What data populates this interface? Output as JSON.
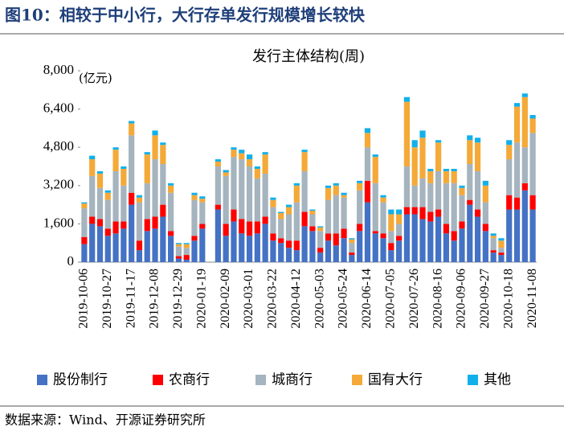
{
  "header": {
    "title": "图10：相较于中小行，大行存单发行规模增长较快"
  },
  "chart_data": {
    "type": "stacked_bar",
    "title": "发行主体结构(周)",
    "y_label": "(亿元)",
    "categories": [
      "2019-10-06",
      null,
      null,
      "2019-10-27",
      null,
      null,
      "2019-11-17",
      null,
      null,
      "2019-12-08",
      null,
      null,
      "2019-12-29",
      null,
      null,
      "2020-01-19",
      null,
      null,
      "2020-02-09",
      null,
      null,
      "2020-03-01",
      null,
      null,
      "2020-03-22",
      null,
      null,
      "2020-04-12",
      null,
      null,
      "2020-05-03",
      null,
      null,
      "2020-05-24",
      null,
      null,
      "2020-06-14",
      null,
      null,
      "2020-07-05",
      null,
      null,
      "2020-07-26",
      null,
      null,
      "2020-08-16",
      null,
      null,
      "2020-09-06",
      null,
      null,
      "2020-09-27",
      null,
      null,
      "2020-10-18",
      null,
      null,
      "2020-11-08"
    ],
    "series": [
      {
        "name": "股份制行",
        "color": "#4472c4",
        "values": [
          750,
          1600,
          1500,
          1100,
          1200,
          1400,
          2400,
          500,
          1300,
          1400,
          1900,
          1100,
          150,
          100,
          900,
          1400,
          0,
          2200,
          1100,
          1700,
          1200,
          1100,
          1200,
          1600,
          900,
          800,
          600,
          500,
          1500,
          1300,
          400,
          900,
          700,
          1000,
          300,
          1300,
          2500,
          1200,
          1000,
          500,
          900,
          2000,
          2000,
          1800,
          1700,
          1900,
          1200,
          900,
          1400,
          2400,
          1900,
          1300,
          400,
          300,
          2200,
          2200,
          3000,
          2200
        ]
      },
      {
        "name": "农商行",
        "color": "#ff0000",
        "values": [
          300,
          300,
          300,
          300,
          500,
          300,
          500,
          400,
          500,
          500,
          500,
          200,
          100,
          200,
          200,
          200,
          0,
          200,
          500,
          500,
          600,
          600,
          500,
          300,
          300,
          200,
          300,
          400,
          600,
          200,
          200,
          300,
          500,
          400,
          100,
          300,
          900,
          100,
          200,
          300,
          200,
          300,
          300,
          500,
          400,
          300,
          400,
          400,
          300,
          200,
          300,
          300,
          100,
          100,
          600,
          500,
          300,
          600
        ]
      },
      {
        "name": "城商行",
        "color": "#a5b4be",
        "values": [
          1200,
          1700,
          1300,
          1200,
          2100,
          1500,
          2400,
          1600,
          1500,
          2400,
          1700,
          1600,
          400,
          300,
          1500,
          900,
          0,
          1600,
          2000,
          2200,
          2500,
          2300,
          1800,
          1800,
          1100,
          800,
          1100,
          1600,
          1700,
          500,
          700,
          1400,
          1600,
          1300,
          400,
          1400,
          1400,
          2000,
          1300,
          500,
          500,
          1700,
          900,
          1200,
          1200,
          1600,
          1700,
          2000,
          1100,
          1500,
          1600,
          900,
          500,
          200,
          1500,
          2300,
          1500,
          2600
        ]
      },
      {
        "name": "国有大行",
        "color": "#f4a938",
        "values": [
          200,
          700,
          600,
          300,
          900,
          700,
          500,
          200,
          1200,
          1000,
          800,
          300,
          100,
          150,
          200,
          150,
          0,
          200,
          150,
          300,
          250,
          300,
          400,
          800,
          300,
          250,
          300,
          700,
          800,
          150,
          150,
          500,
          400,
          100,
          150,
          300,
          600,
          1100,
          200,
          700,
          400,
          2700,
          1600,
          1700,
          500,
          1200,
          500,
          500,
          300,
          1000,
          1200,
          700,
          100,
          300,
          600,
          1500,
          2100,
          600
        ]
      },
      {
        "name": "其他",
        "color": "#12b0ea",
        "values": [
          50,
          150,
          100,
          100,
          100,
          100,
          100,
          100,
          100,
          200,
          100,
          100,
          50,
          50,
          100,
          100,
          0,
          100,
          100,
          100,
          150,
          200,
          100,
          100,
          100,
          50,
          100,
          100,
          100,
          50,
          50,
          100,
          100,
          100,
          50,
          100,
          200,
          100,
          100,
          200,
          200,
          200,
          300,
          300,
          100,
          100,
          100,
          100,
          100,
          200,
          200,
          200,
          100,
          100,
          200,
          150,
          150,
          150
        ]
      }
    ],
    "ylim": [
      0,
      8000
    ],
    "yticks": [
      0,
      {
        "value": 1600,
        "label": "1,600"
      },
      {
        "value": 3200,
        "label": "3,200"
      },
      {
        "value": 4800,
        "label": "4,800"
      },
      {
        "value": 6400,
        "label": "6,400"
      },
      {
        "value": 8000,
        "label": "8,000"
      }
    ],
    "grid": false,
    "legend": "bottom"
  },
  "source": "数据来源：Wind、开源证券研究所"
}
